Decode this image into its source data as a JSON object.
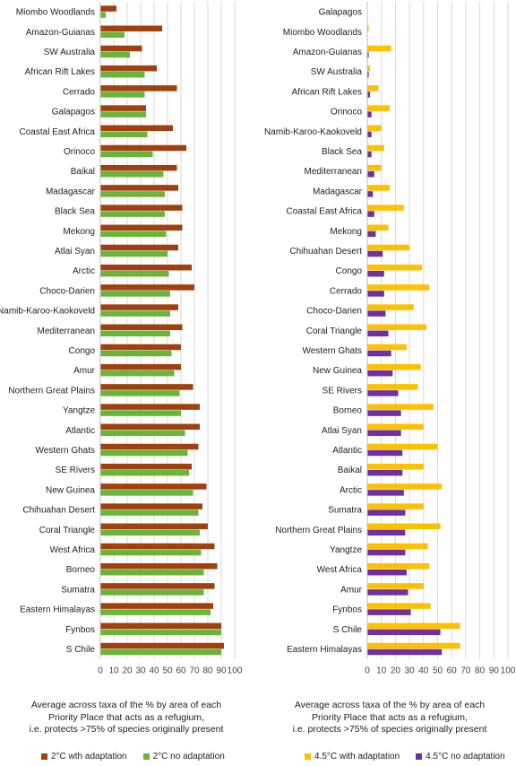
{
  "chart_data": [
    {
      "type": "bar",
      "orientation": "horizontal",
      "categories": [
        "Miombo Woodlands",
        "Amazon-Guianas",
        "SW Australia",
        "African Rift Lakes",
        "Cerrado",
        "Galapagos",
        "Coastal East Africa",
        "Orinoco",
        "Baikal",
        "Madagascar",
        "Black Sea",
        "Mekong",
        "Atlai Syan",
        "Arctic",
        "Choco-Darien",
        "Namib-Karoo-Kaokoveld",
        "Mediterranean",
        "Congo",
        "Amur",
        "Northern Great Plains",
        "Yangtze",
        "Atlantic",
        "Western Ghats",
        "SE Rivers",
        "New Guinea",
        "Chihuahan Desert",
        "Coral Triangle",
        "West Africa",
        "Borneo",
        "Sumatra",
        "Eastern Himalayas",
        "Fynbos",
        "S Chile"
      ],
      "series": [
        {
          "name": "2°C wth adaptation",
          "color": "#a0400f",
          "values": [
            12,
            46,
            31,
            42,
            57,
            34,
            54,
            64,
            57,
            58,
            61,
            61,
            58,
            68,
            70,
            58,
            61,
            60,
            60,
            69,
            74,
            74,
            73,
            68,
            79,
            76,
            80,
            85,
            87,
            85,
            84,
            90,
            92
          ]
        },
        {
          "name": "2°C no adaptation",
          "color": "#6bb43a",
          "values": [
            4,
            18,
            22,
            33,
            33,
            34,
            35,
            39,
            47,
            48,
            48,
            49,
            50,
            51,
            52,
            52,
            52,
            53,
            55,
            59,
            60,
            63,
            65,
            66,
            69,
            73,
            74,
            75,
            77,
            77,
            82,
            90,
            90
          ]
        }
      ],
      "xlim": [
        0,
        100
      ],
      "xticks": [
        0,
        10,
        20,
        30,
        40,
        50,
        60,
        70,
        80,
        90,
        100
      ],
      "xlabel": "Average across taxa of the % by area of each Priority Place that acts as a refugium, i.e. protects >75% of species originally present",
      "xlabel_lines": [
        "Average across taxa of the % by area of each",
        "Priority Place that acts as a refugium,",
        "i.e. protects >75% of species originally present"
      ],
      "grid": true,
      "legend": "bottom"
    },
    {
      "type": "bar",
      "orientation": "horizontal",
      "categories": [
        "Galapagos",
        "Miombo Woodlands",
        "Amazon-Guianas",
        "SW Australia",
        "African Rift Lakes",
        "Orinoco",
        "Namib-Karoo-Kaokoveld",
        "Black Sea",
        "Mediterranean",
        "Madagascar",
        "Coastal East Africa",
        "Mekong",
        "Chihuahan Desert",
        "Congo",
        "Cerrado",
        "Choco-Darien",
        "Coral Triangle",
        "Western Ghats",
        "New Guinea",
        "SE Rivers",
        "Borneo",
        "Atlai Syan",
        "Atlantic",
        "Baikal",
        "Arctic",
        "Sumatra",
        "Northern Great Plains",
        "Yangtze",
        "West Africa",
        "Amur",
        "Fynbos",
        "S Chile",
        "Eastern Himalayas"
      ],
      "series": [
        {
          "name": "4.5°C with adaptation",
          "color": "#ffc000",
          "values": [
            0,
            1,
            17,
            2,
            8,
            16,
            10,
            12,
            10,
            16,
            26,
            15,
            30,
            39,
            44,
            33,
            42,
            28,
            38,
            36,
            47,
            40,
            50,
            40,
            53,
            40,
            52,
            43,
            44,
            40,
            45,
            66,
            66
          ]
        },
        {
          "name": "4.5°C no adaptation",
          "color": "#7030a0",
          "values": [
            0,
            0,
            1,
            1,
            2,
            3,
            3,
            3,
            5,
            4,
            5,
            6,
            11,
            12,
            12,
            13,
            15,
            17,
            18,
            22,
            24,
            24,
            25,
            25,
            26,
            27,
            27,
            27,
            28,
            29,
            31,
            52,
            53
          ]
        }
      ],
      "xlim": [
        0,
        100
      ],
      "xticks": [
        0,
        10,
        20,
        30,
        40,
        50,
        60,
        70,
        80,
        90,
        100
      ],
      "xlabel": "Average across taxa of the % by area of each Priority Place that acts as a refugium, i.e. protects >75% of species originally present",
      "xlabel_lines": [
        "Average across taxa of the % by area of each",
        "Priority Place that acts as a refugium,",
        "i.e. protects >75% of species originally present"
      ],
      "grid": true,
      "legend": "bottom"
    }
  ]
}
